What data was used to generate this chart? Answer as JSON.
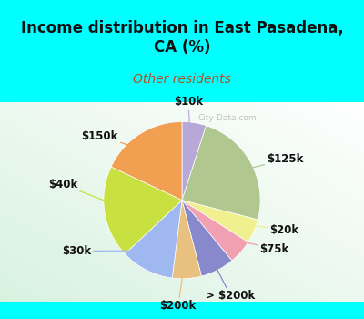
{
  "title": "Income distribution in East Pasadena,\nCA (%)",
  "subtitle": "Other residents",
  "title_color": "#111111",
  "subtitle_color": "#b05020",
  "bg_cyan": "#00ffff",
  "watermark": "City-Data.com",
  "labels": [
    "$10k",
    "$125k",
    "$20k",
    "$75k",
    "> $200k",
    "$200k",
    "$30k",
    "$40k",
    "$150k"
  ],
  "sizes": [
    5,
    24,
    5,
    5,
    7,
    6,
    11,
    19,
    18
  ],
  "colors": [
    "#b8a8d8",
    "#b0c890",
    "#f0f090",
    "#f0a0b0",
    "#8888cc",
    "#e8c080",
    "#a0b8f0",
    "#c8e040",
    "#f0a050"
  ],
  "label_color": "#111111",
  "label_fontsize": 8.5,
  "startangle": 90,
  "figsize": [
    4.0,
    3.5
  ],
  "dpi": 100,
  "title_fontsize": 12,
  "subtitle_fontsize": 10,
  "label_positions_x": [
    0.08,
    1.32,
    1.3,
    1.18,
    0.62,
    -0.05,
    -1.35,
    -1.52,
    -1.05
  ],
  "label_positions_y": [
    1.25,
    0.52,
    -0.38,
    -0.62,
    -1.22,
    -1.35,
    -0.65,
    0.2,
    0.82
  ]
}
